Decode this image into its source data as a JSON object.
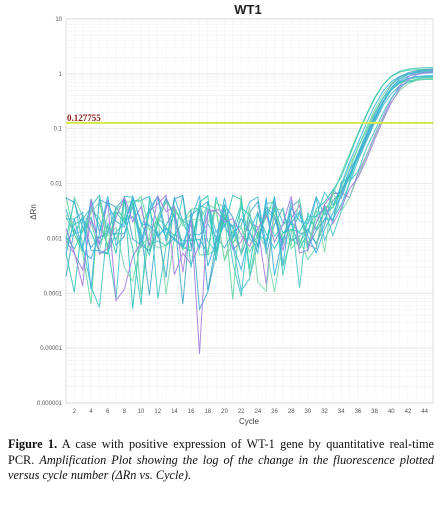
{
  "chart_data": {
    "type": "line",
    "title": "WT1",
    "xlabel": "Cycle",
    "ylabel": "ΔRn",
    "yscale": "log",
    "ylim": [
      1e-06,
      10
    ],
    "xlim": [
      1,
      45
    ],
    "x_ticks": [
      "2",
      "4",
      "6",
      "8",
      "10",
      "12",
      "14",
      "16",
      "18",
      "20",
      "22",
      "24",
      "26",
      "28",
      "30",
      "32",
      "34",
      "36",
      "38",
      "40",
      "42",
      "44"
    ],
    "y_ticks": [
      "10",
      "1",
      "0.1",
      "0.01",
      "0.001",
      "0.0001",
      "0.00001",
      "0.000001"
    ],
    "grid": true,
    "threshold": {
      "value": 0.127755,
      "label": "0.127755",
      "color": "#d4e84a"
    },
    "series_colors": [
      "#3ec7c0",
      "#46b6d2",
      "#5fd59e",
      "#41a8c8",
      "#7ad6a8",
      "#2fc4b8",
      "#a37be0",
      "#38b0e0"
    ]
  },
  "caption": {
    "label": "Figure 1.",
    "text": " A case with positive expression of WT-1 gene by quantitative real-time PCR. ",
    "italic": "Amplification Plot showing the log of the change in the fluorescence plotted versus cycle number (ΔRn vs. Cycle)."
  }
}
